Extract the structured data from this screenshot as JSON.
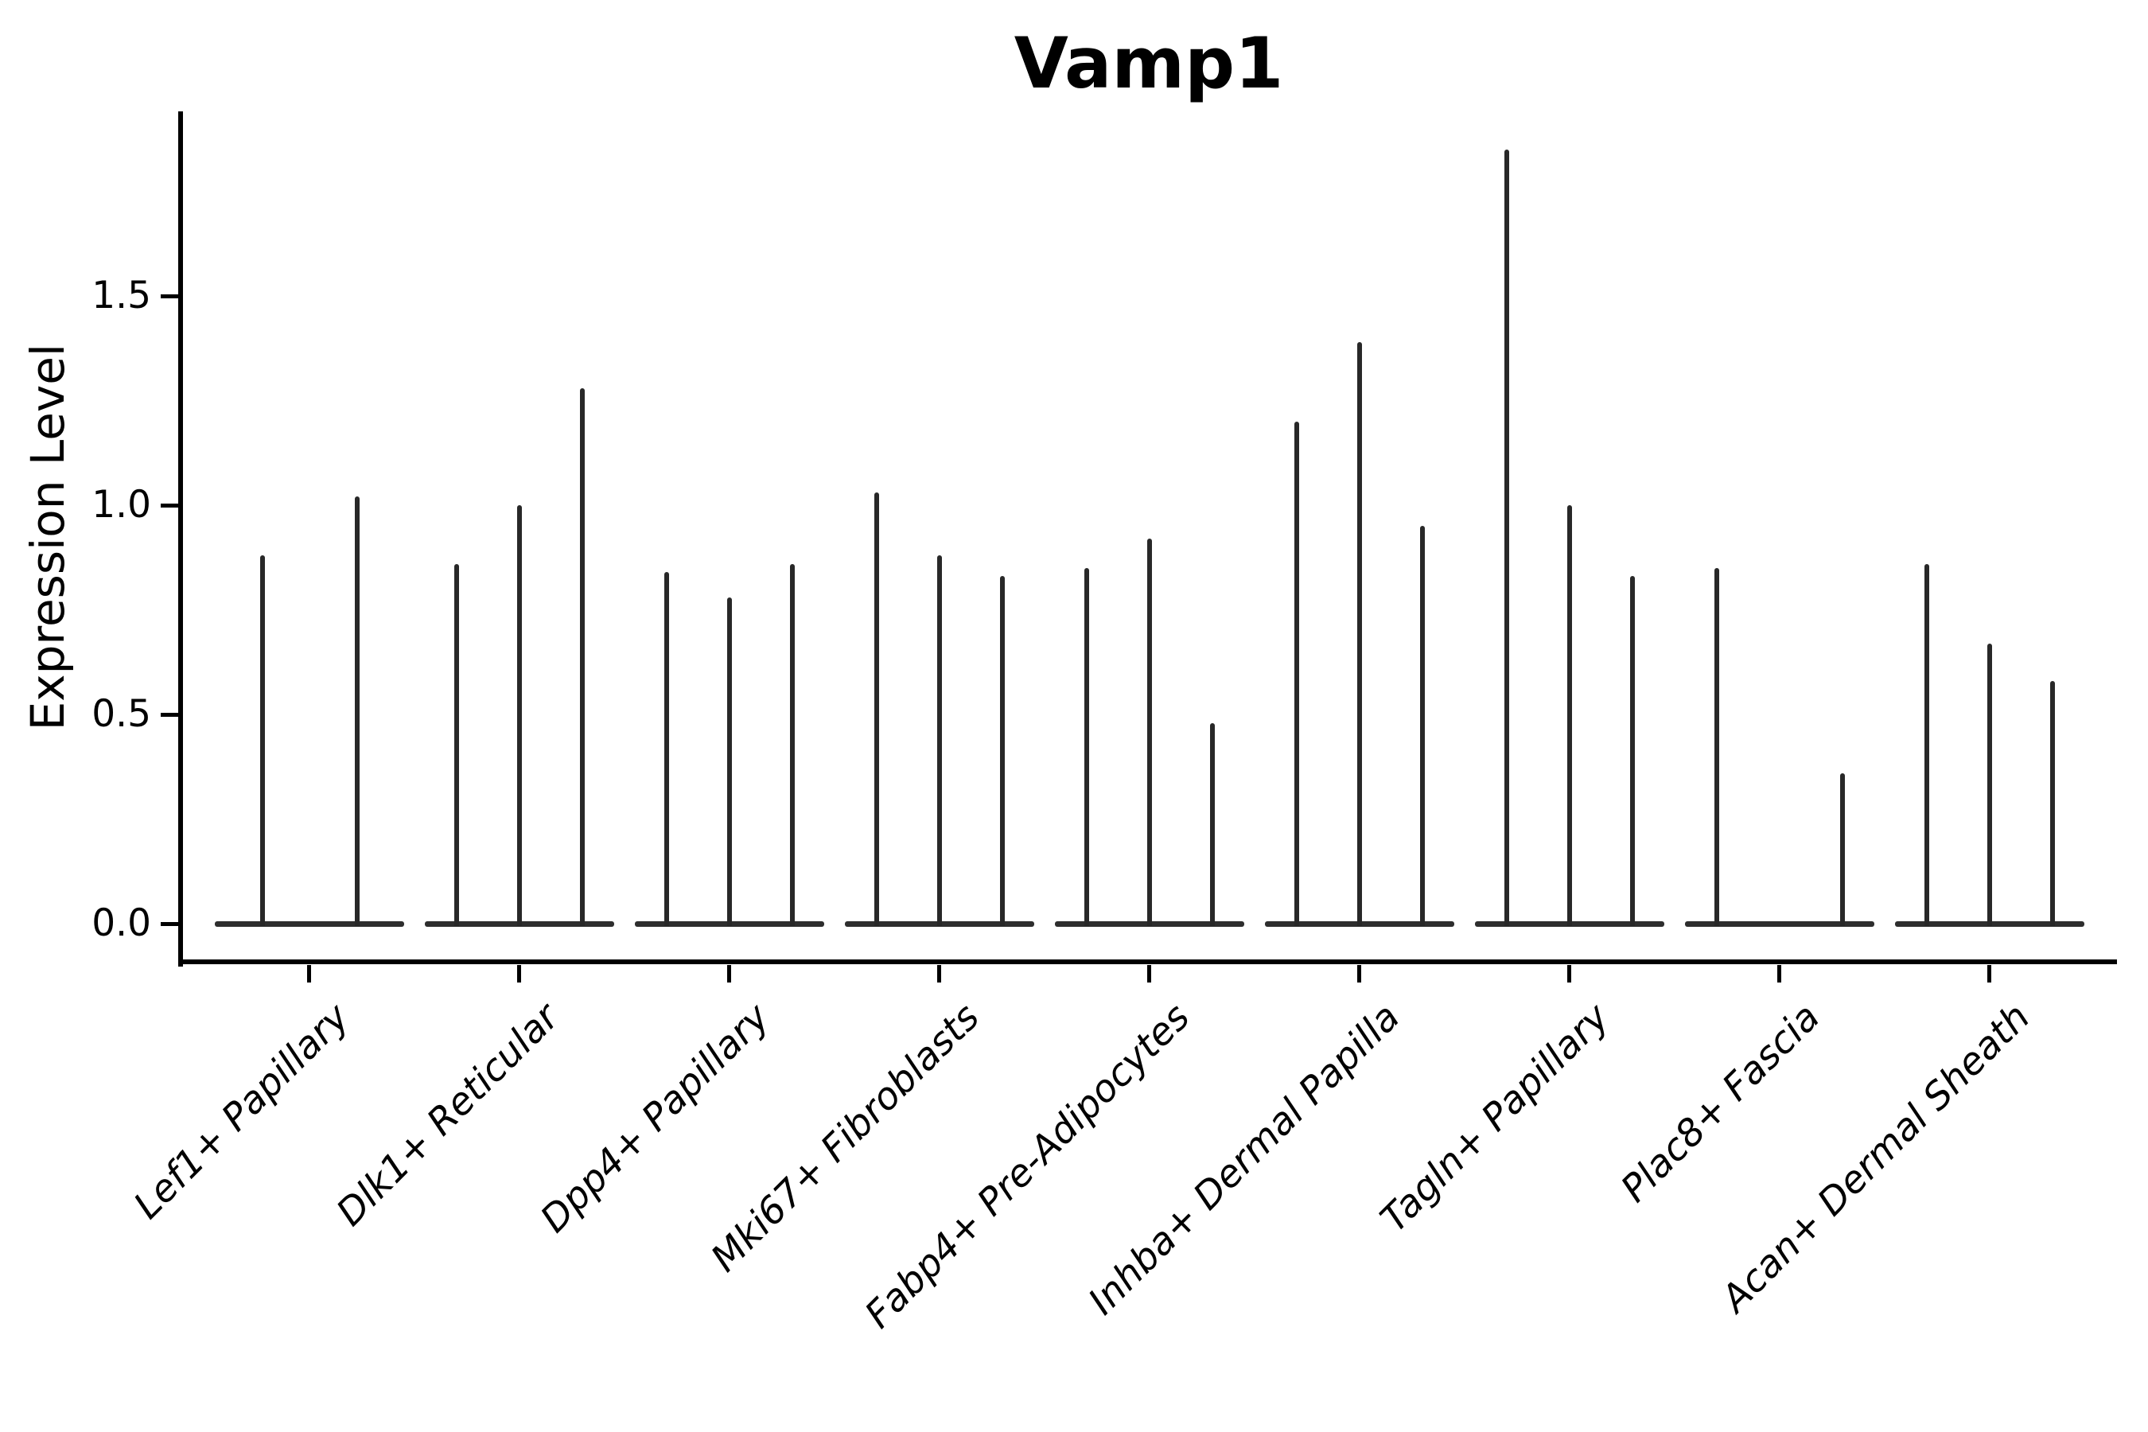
{
  "chart_data": {
    "type": "violin",
    "title": "Vamp1",
    "ylabel": "Expression Level",
    "xlabel": "",
    "grid": false,
    "legend_position": "none",
    "background_color": "#ffffff",
    "axis_color": "#000000",
    "violin_color": "#282828",
    "ylim": [
      -0.09,
      1.94
    ],
    "y_ticks": [
      0.0,
      0.5,
      1.0,
      1.5
    ],
    "y_tick_labels": [
      "0.0",
      "0.5",
      "1.0",
      "1.5"
    ],
    "categories": [
      "Lef1+ Papillary",
      "Dlk1+ Reticular",
      "Dpp4+ Papillary",
      "Mki67+ Fibroblasts",
      "Fabp4+ Pre-Adipocytes",
      "Inhba+ Dermal Papilla",
      "Tagln+ Papillary",
      "Plac8+ Fascia",
      "Acan+ Dermal Sheath"
    ],
    "groups": [
      {
        "category": "Lef1+ Papillary",
        "violin_maxima": [
          0.88,
          1.02
        ]
      },
      {
        "category": "Dlk1+ Reticular",
        "violin_maxima": [
          0.86,
          1.0,
          1.28
        ]
      },
      {
        "category": "Dpp4+ Papillary",
        "violin_maxima": [
          0.84,
          0.78,
          0.86
        ]
      },
      {
        "category": "Mki67+ Fibroblasts",
        "violin_maxima": [
          1.03,
          0.88,
          0.83
        ]
      },
      {
        "category": "Fabp4+ Pre-Adipocytes",
        "violin_maxima": [
          0.85,
          0.92,
          0.48
        ]
      },
      {
        "category": "Inhba+ Dermal Papilla",
        "violin_maxima": [
          1.2,
          1.39,
          0.95
        ]
      },
      {
        "category": "Tagln+ Papillary",
        "violin_maxima": [
          1.85,
          1.0,
          0.83
        ]
      },
      {
        "category": "Plac8+ Fascia",
        "violin_maxima": [
          0.85,
          null,
          0.36
        ]
      },
      {
        "category": "Acan+ Dermal Sheath",
        "violin_maxima": [
          0.86,
          0.67,
          0.58
        ]
      }
    ],
    "description": "Violin plot of Vamp1 expression; each cluster shows needle-thin violins (wide flat base at 0 with a narrow spike to the listed maximum expression value)."
  }
}
